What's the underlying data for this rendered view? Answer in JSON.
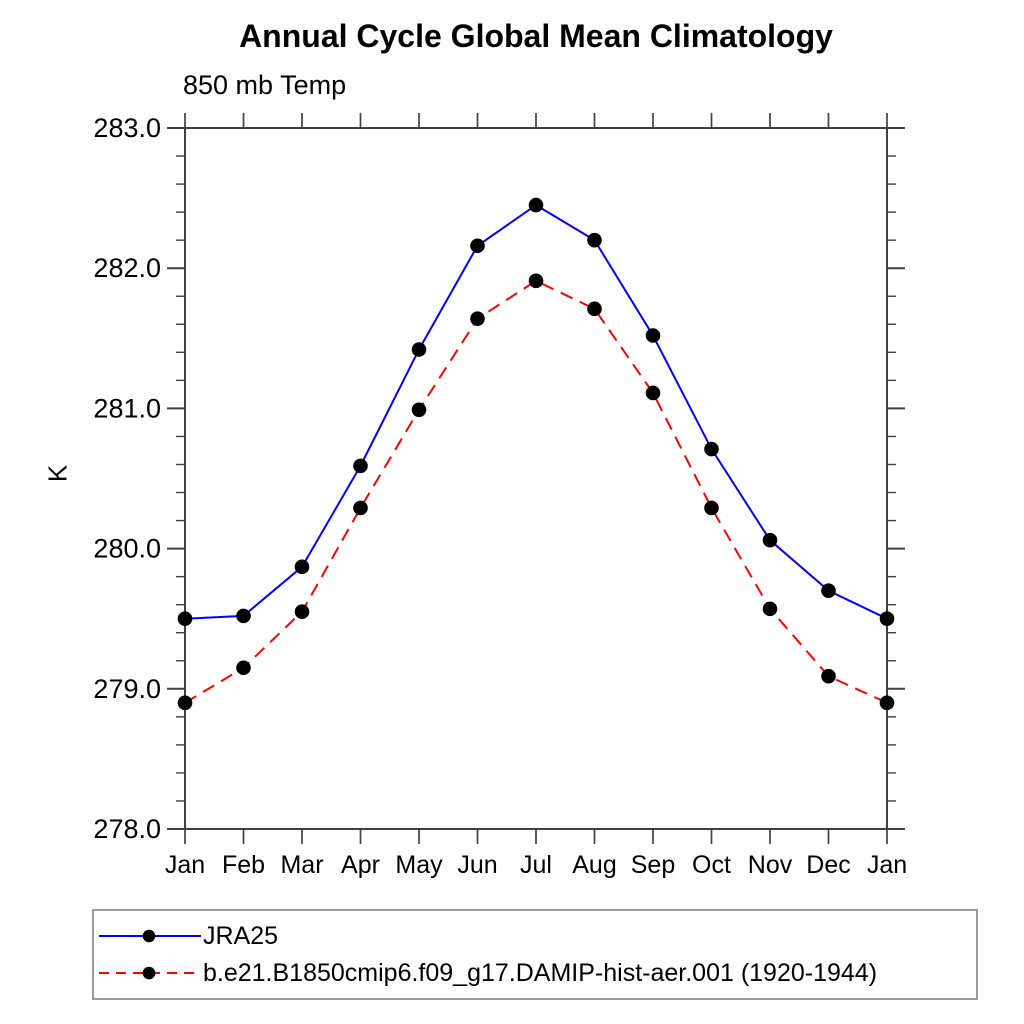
{
  "title": "Annual Cycle Global Mean Climatology",
  "subtitle": "850 mb Temp",
  "chart_data": {
    "type": "line",
    "title": "Annual Cycle Global Mean Climatology",
    "subtitle": "850 mb Temp",
    "xlabel": "",
    "ylabel": "K",
    "categories": [
      "Jan",
      "Feb",
      "Mar",
      "Apr",
      "May",
      "Jun",
      "Jul",
      "Aug",
      "Sep",
      "Oct",
      "Nov",
      "Dec",
      "Jan"
    ],
    "ylim": [
      278.0,
      283.0
    ],
    "ytick_labels": [
      "278.0",
      "279.0",
      "280.0",
      "281.0",
      "282.0",
      "283.0"
    ],
    "ytick_values": [
      278.0,
      279.0,
      280.0,
      281.0,
      282.0,
      283.0
    ],
    "ytick_minor_step": 0.2,
    "grid": false,
    "legend_position": "bottom-left-box",
    "series": [
      {
        "name": "JRA25",
        "color": "#0000ff",
        "line_style": "solid",
        "marker": "circle",
        "marker_color": "#000000",
        "values": [
          279.5,
          279.52,
          279.87,
          280.59,
          281.42,
          282.16,
          282.45,
          282.2,
          281.52,
          280.71,
          280.06,
          279.7,
          279.5
        ]
      },
      {
        "name": "b.e21.B1850cmip6.f09_g17.DAMIP-hist-aer.001 (1920-1944)",
        "color": "#ff0000",
        "line_style": "dashed",
        "marker": "circle",
        "marker_color": "#000000",
        "values": [
          278.9,
          279.15,
          279.55,
          280.29,
          280.99,
          281.64,
          281.91,
          281.71,
          281.11,
          280.29,
          279.57,
          279.09,
          278.9
        ]
      }
    ],
    "colors": {
      "axis": "#404040",
      "tick": "#404040",
      "text": "#000000",
      "legend_border": "#9a9a9a",
      "background": "#ffffff"
    }
  }
}
